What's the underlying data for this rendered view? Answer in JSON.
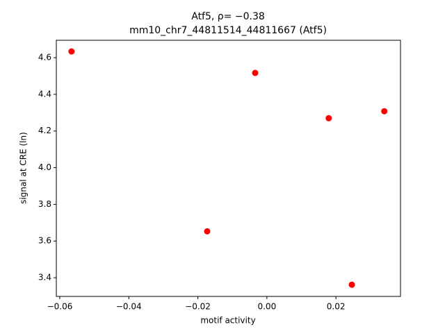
{
  "chart_data": {
    "type": "scatter",
    "title": "Atf5, ρ= −0.38",
    "subtitle": "mm10_chr7_44811514_44811667 (Atf5)",
    "x_label": "motif activity",
    "y_label": "signal at CRE (ln)",
    "color": "#ff0000",
    "x": [
      -0.0566,
      -0.0034,
      0.0179,
      0.034,
      -0.0173,
      0.0246
    ],
    "values": [
      4.634,
      4.517,
      4.27,
      4.308,
      3.653,
      3.362
    ],
    "xlim": [
      -0.061,
      0.0387
    ],
    "ylim": [
      3.298,
      4.695
    ],
    "xticks": [
      {
        "value": -0.06,
        "label": "−0.06"
      },
      {
        "value": -0.04,
        "label": "−0.04"
      },
      {
        "value": -0.02,
        "label": "−0.02"
      },
      {
        "value": 0,
        "label": "0.00"
      },
      0.02
    ],
    "yticks": [
      3.4,
      3.6,
      3.8,
      {
        "value": 4.0,
        "label": "4.0"
      },
      4.2,
      4.4,
      4.6
    ],
    "grid": false
  }
}
